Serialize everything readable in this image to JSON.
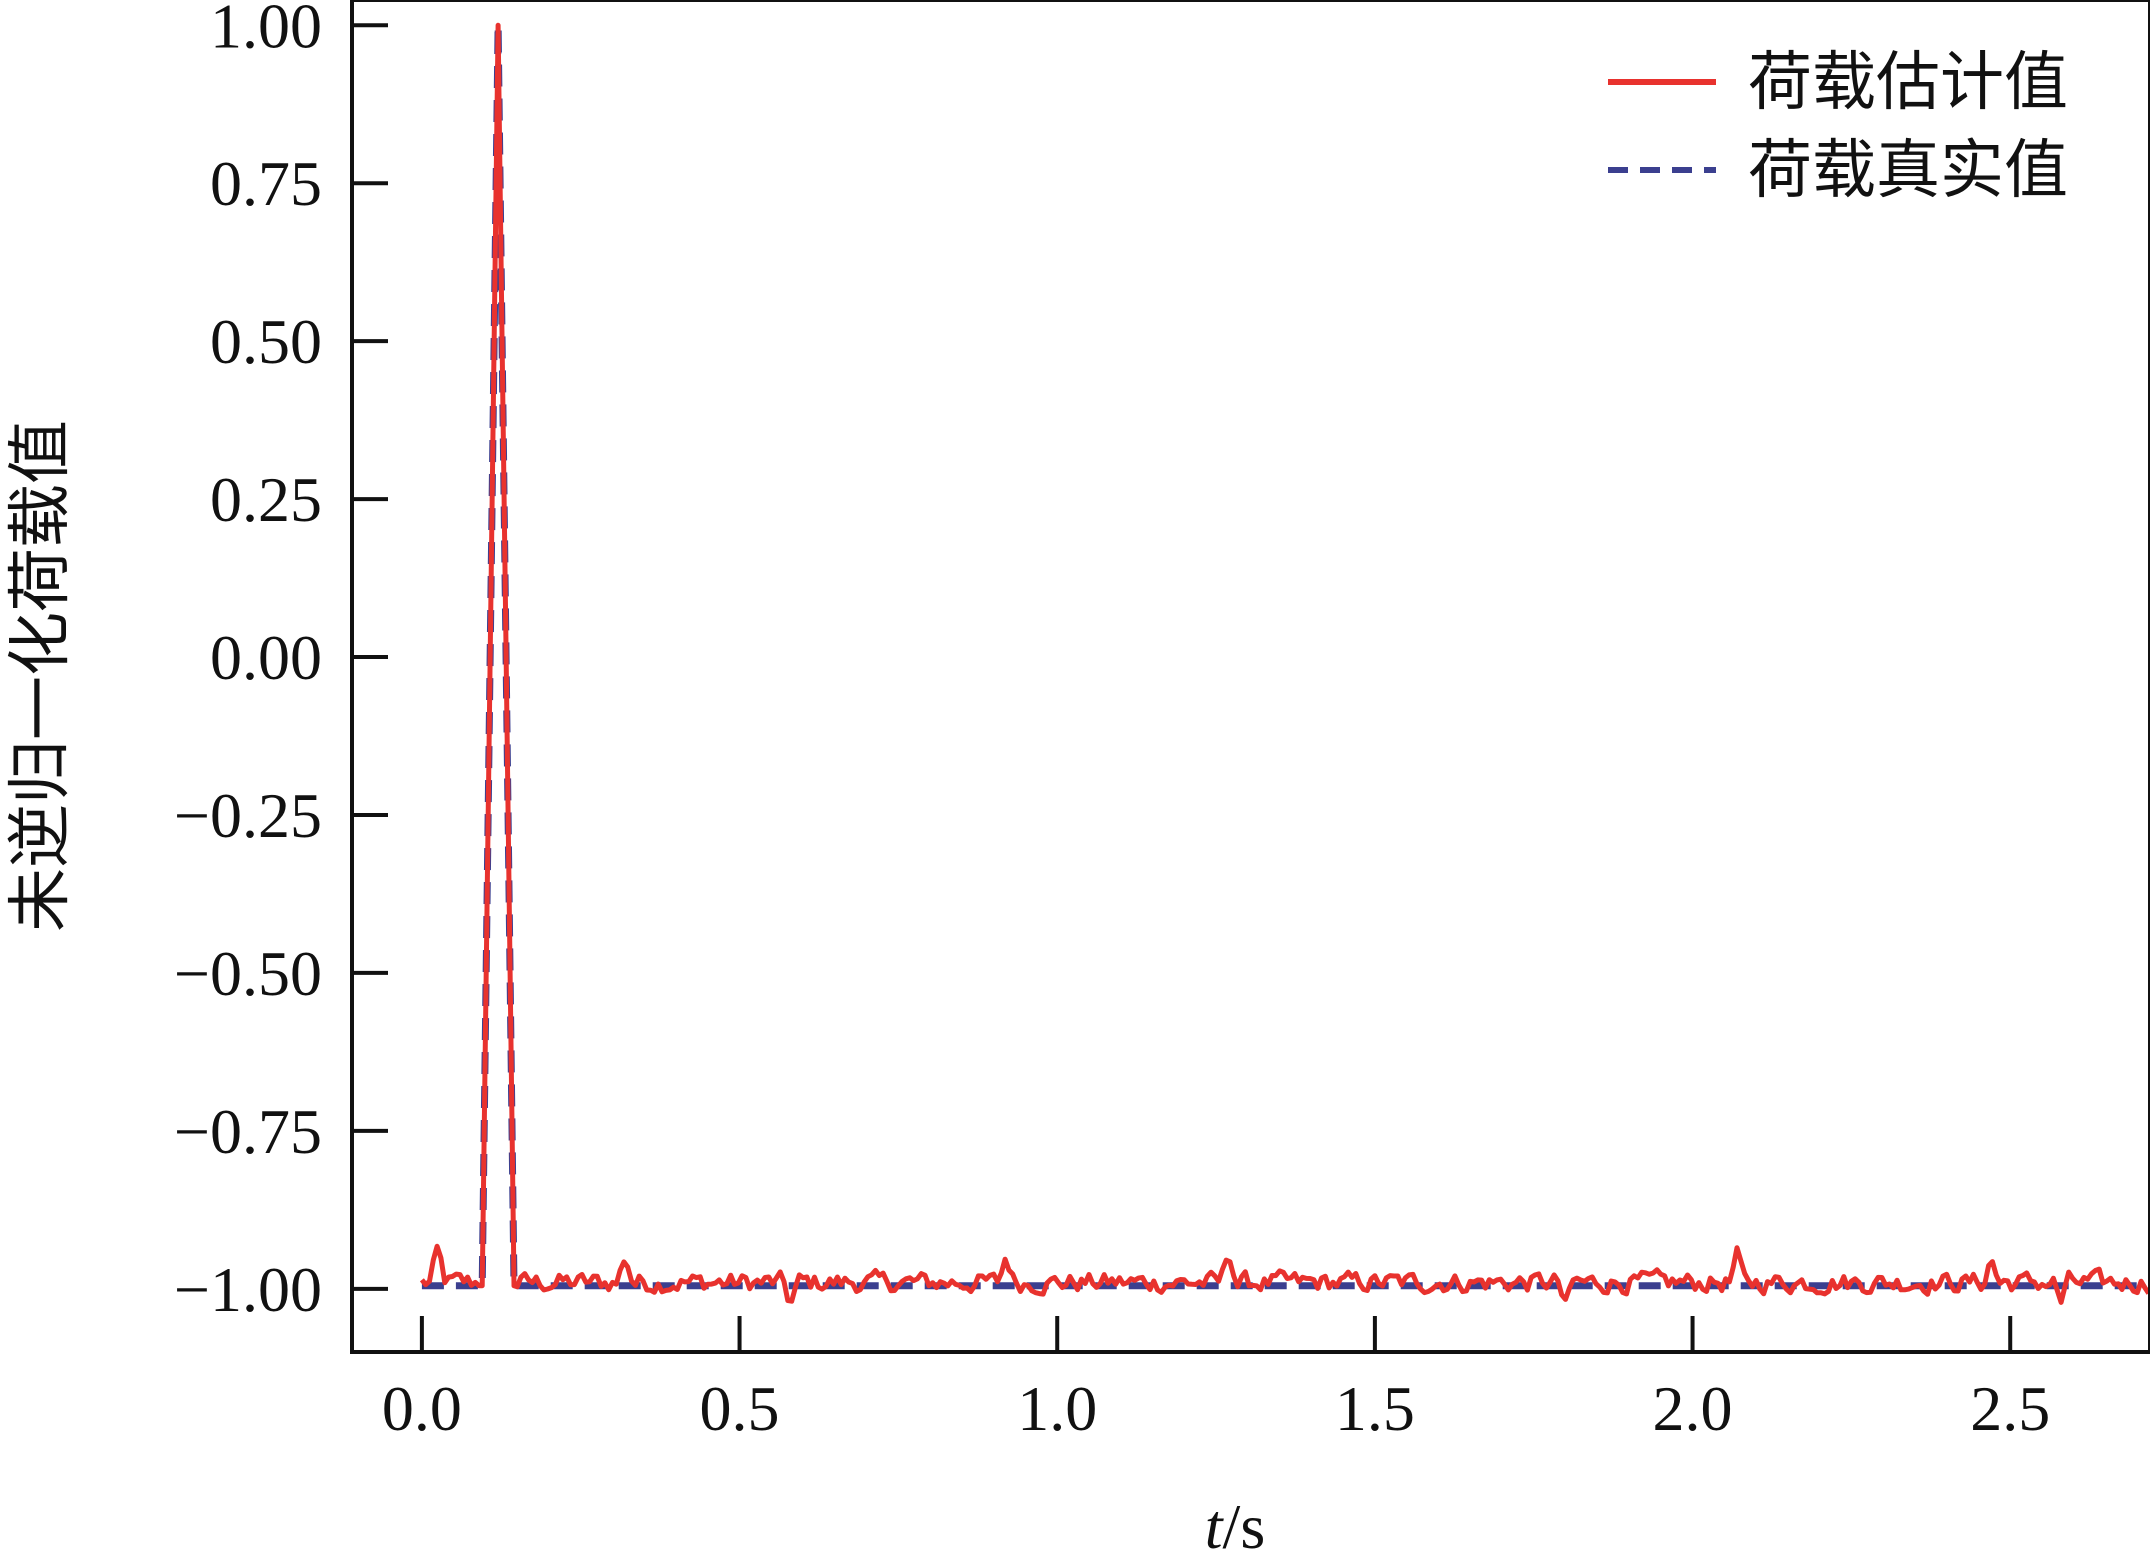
{
  "chart_data": {
    "type": "line",
    "title": "",
    "xlabel": {
      "italic": "t",
      "rest": "/s"
    },
    "ylabel": "未逆归一化荷载值",
    "xlim": [
      -0.11,
      2.72
    ],
    "ylim": [
      -1.1,
      1.04
    ],
    "xticks": [
      0.0,
      0.5,
      1.0,
      1.5,
      2.0,
      2.5
    ],
    "xtick_labels": [
      "0.0",
      "0.5",
      "1.0",
      "1.5",
      "2.0",
      "2.5"
    ],
    "yticks": [
      1.0,
      0.75,
      0.5,
      0.25,
      0.0,
      -0.25,
      -0.5,
      -0.75,
      -1.0
    ],
    "ytick_labels": [
      "1.00",
      "0.75",
      "0.50",
      "0.25",
      "0.00",
      "−0.25",
      "−0.50",
      "−0.75",
      "−1.00"
    ],
    "grid": false,
    "legend": "top-right",
    "pulse": {
      "start": 0.095,
      "peak_t": 0.12,
      "end": 0.145,
      "base": -0.995,
      "peak": 1.0
    },
    "series": [
      {
        "name": "荷载估计值",
        "color": "#e8322e",
        "style": "solid",
        "noise_amplitude": 0.025,
        "noise_peak_offsets": [
          [
            0.025,
            0.05
          ],
          [
            0.32,
            0.045
          ],
          [
            0.58,
            -0.035
          ],
          [
            0.92,
            0.045
          ],
          [
            1.27,
            0.055
          ],
          [
            1.8,
            -0.04
          ],
          [
            2.07,
            0.04
          ],
          [
            2.47,
            0.04
          ],
          [
            2.58,
            -0.03
          ]
        ]
      },
      {
        "name": "荷载真实值",
        "color": "#3b3f8f",
        "style": "dashed"
      }
    ]
  }
}
